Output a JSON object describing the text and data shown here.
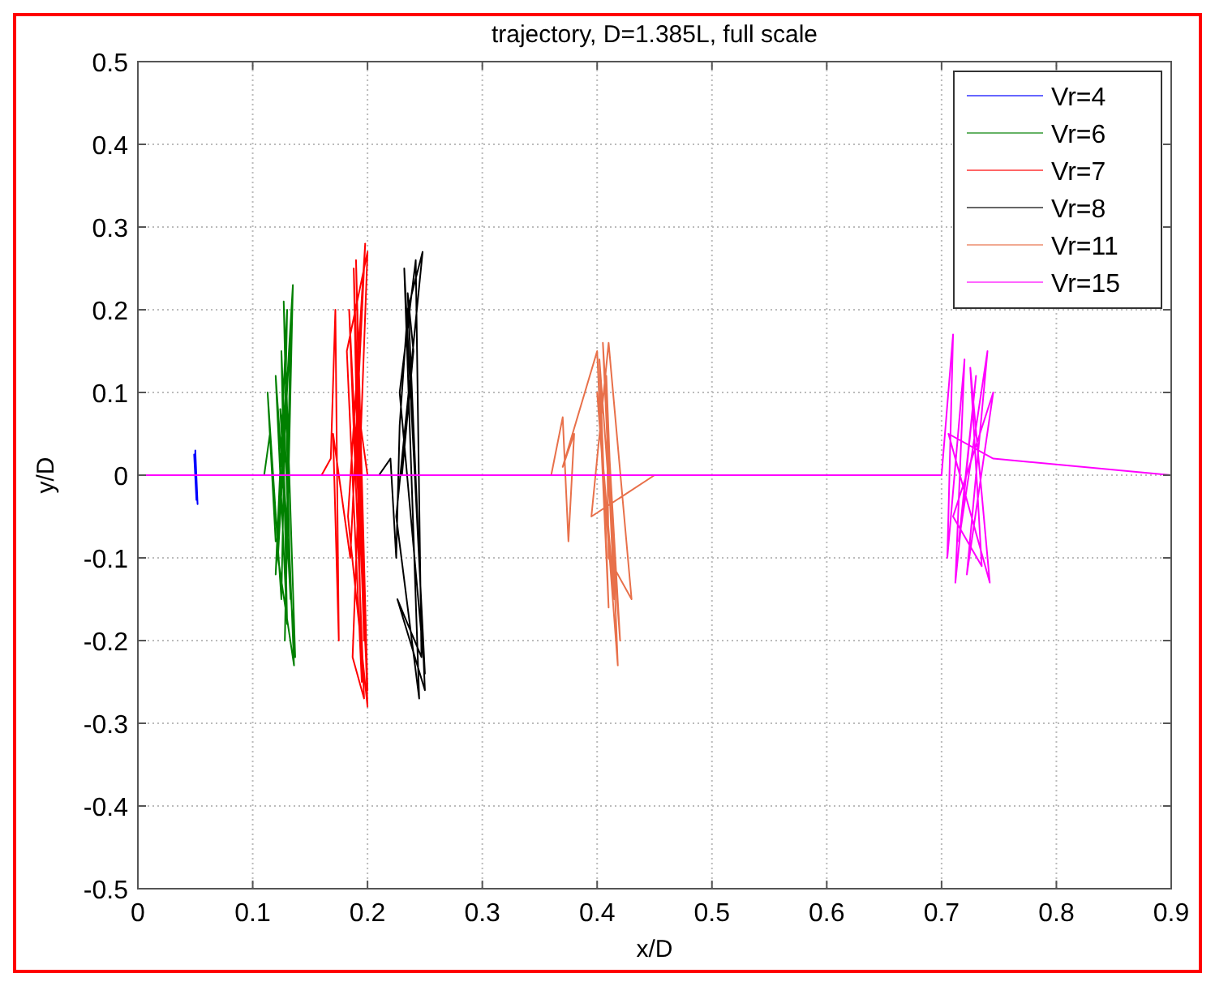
{
  "chart_data": {
    "type": "line",
    "title": "trajectory, D=1.385L, full scale",
    "xlabel": "x/D",
    "ylabel": "y/D",
    "xlim": [
      0,
      0.9
    ],
    "xticks": [
      0,
      0.1,
      0.2,
      0.3,
      0.4,
      0.5,
      0.6,
      0.7,
      0.8,
      0.9
    ],
    "ylim": [
      -0.5,
      0.5
    ],
    "yticks": [
      -0.5,
      -0.4,
      -0.3,
      -0.2,
      -0.1,
      0,
      0.1,
      0.2,
      0.3,
      0.4,
      0.5
    ],
    "grid": true,
    "legend": "top right",
    "line_style": "solid",
    "marker": "none",
    "series": [
      {
        "name": "Vr=4",
        "color": "#0000ff",
        "x": [
          0.04,
          0.09,
          0.05,
          0.05,
          0.052,
          0.049,
          0.051,
          0.05,
          0.05
        ],
        "values": [
          0,
          0,
          0,
          0.03,
          -0.035,
          0.025,
          -0.03,
          0.02,
          0
        ]
      },
      {
        "name": "Vr=6",
        "color": "#008000",
        "x": [
          0.11,
          0.115,
          0.12,
          0.113,
          0.125,
          0.13,
          0.12,
          0.135,
          0.128,
          0.133,
          0.122,
          0.136,
          0.125,
          0.13,
          0.12,
          0.137,
          0.127,
          0.133,
          0.124,
          0.13
        ],
        "values": [
          0,
          0.05,
          -0.08,
          0.1,
          -0.15,
          0.2,
          -0.12,
          0.23,
          -0.2,
          0.18,
          -0.1,
          -0.23,
          0.15,
          -0.18,
          0.12,
          -0.22,
          0.21,
          -0.15,
          0.08,
          0
        ]
      },
      {
        "name": "Vr=7",
        "color": "#ff0000",
        "x": [
          0.16,
          0.168,
          0.172,
          0.175,
          0.17,
          0.185,
          0.198,
          0.183,
          0.2,
          0.188,
          0.195,
          0.182,
          0.2,
          0.187,
          0.197,
          0.184,
          0.2,
          0.19,
          0.197,
          0.19,
          0.2
        ],
        "values": [
          0,
          0.02,
          0.2,
          -0.2,
          0.05,
          -0.1,
          0.28,
          -0.05,
          -0.28,
          0.25,
          -0.25,
          0.15,
          0.27,
          -0.22,
          -0.27,
          0.2,
          -0.26,
          0.26,
          -0.2,
          0.1,
          0
        ]
      },
      {
        "name": "Vr=8",
        "color": "#000000",
        "x": [
          0.21,
          0.22,
          0.225,
          0.228,
          0.235,
          0.248,
          0.225,
          0.245,
          0.232,
          0.25,
          0.228,
          0.242,
          0.247,
          0.226,
          0.25,
          0.235,
          0.24,
          0.23,
          0.28
        ],
        "values": [
          0,
          0.02,
          -0.1,
          0.06,
          0.2,
          0.27,
          -0.05,
          -0.27,
          0.25,
          -0.24,
          0.1,
          0.26,
          -0.22,
          -0.15,
          -0.26,
          0.22,
          0.15,
          0,
          0
        ]
      },
      {
        "name": "Vr=11",
        "color": "#e8704a",
        "x": [
          0.36,
          0.37,
          0.375,
          0.38,
          0.37,
          0.4,
          0.41,
          0.402,
          0.42,
          0.405,
          0.415,
          0.4,
          0.418,
          0.408,
          0.41,
          0.43,
          0.41,
          0.395,
          0.45,
          0.64,
          0.5,
          0.45
        ],
        "values": [
          0,
          0.07,
          -0.08,
          0.05,
          0.01,
          0.15,
          -0.16,
          0.14,
          -0.2,
          0.16,
          -0.15,
          0.1,
          -0.23,
          0.12,
          -0.1,
          -0.15,
          0.16,
          -0.05,
          0,
          0,
          0,
          0
        ]
      },
      {
        "name": "Vr=15",
        "color": "#ff00ff",
        "x": [
          0,
          0.7,
          0.71,
          0.705,
          0.72,
          0.712,
          0.73,
          0.715,
          0.74,
          0.722,
          0.745,
          0.71,
          0.735,
          0.725,
          0.742,
          0.706,
          0.745,
          0.9
        ],
        "values": [
          0,
          0,
          0.17,
          -0.1,
          0.14,
          -0.13,
          0.12,
          -0.08,
          0.15,
          -0.12,
          0.1,
          -0.05,
          -0.11,
          0.13,
          -0.13,
          0.05,
          0.02,
          0
        ]
      }
    ]
  }
}
